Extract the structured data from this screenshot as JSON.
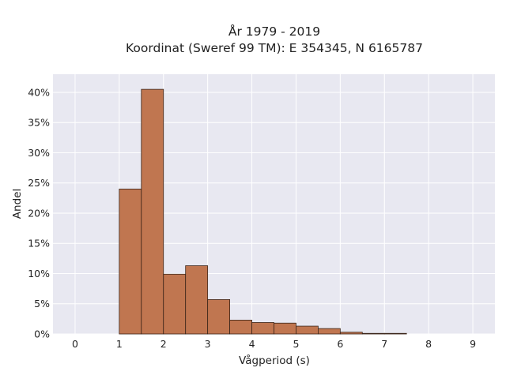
{
  "chart_data": {
    "type": "bar",
    "title_line1": "År 1979 - 2019",
    "title_line2": "Koordinat (Sweref 99 TM): E 354345, N 6165787",
    "xlabel": "Vågperiod (s)",
    "ylabel": "Andel",
    "xlim": [
      -0.5,
      9.5
    ],
    "ylim": [
      0,
      0.43
    ],
    "x_ticks": [
      "0",
      "1",
      "2",
      "3",
      "4",
      "5",
      "6",
      "7",
      "8",
      "9"
    ],
    "y_ticks": [
      "0%",
      "5%",
      "10%",
      "15%",
      "20%",
      "25%",
      "30%",
      "35%",
      "40%"
    ],
    "bin_width": 0.5,
    "bin_starts": [
      1.0,
      1.5,
      2.0,
      2.5,
      3.0,
      3.5,
      4.0,
      4.5,
      5.0,
      5.5,
      6.0,
      6.5,
      7.0
    ],
    "values": [
      0.24,
      0.405,
      0.099,
      0.113,
      0.057,
      0.023,
      0.019,
      0.018,
      0.013,
      0.009,
      0.003,
      0.001,
      0.001
    ],
    "grid": true,
    "colors": {
      "bar_fill": "#c07650",
      "bar_edge": "#3a2418",
      "plot_background": "#e8e8f1",
      "grid_line": "#ffffff"
    }
  }
}
